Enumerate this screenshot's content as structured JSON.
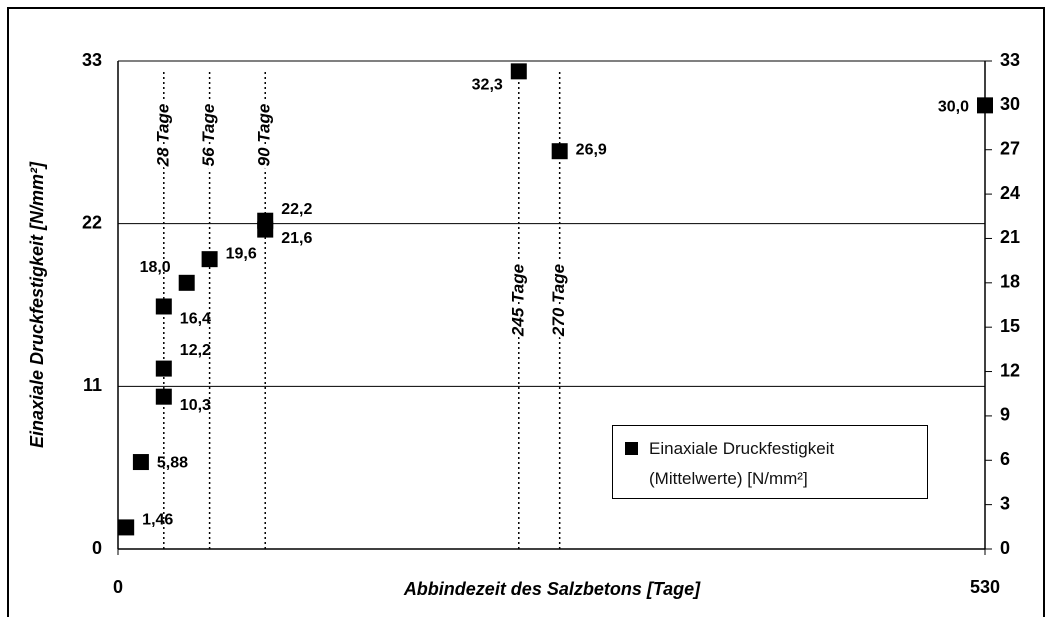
{
  "chart_data": {
    "type": "scatter",
    "xlabel": "Abbindezeit des Salzbetons [Tage]",
    "ylabel": "Einaxiale Druckfestigkeit [N/mm²]",
    "xlim": [
      0,
      530
    ],
    "xticks": [
      0,
      530
    ],
    "ylim": [
      0,
      33
    ],
    "yticks": [
      0,
      11,
      22,
      33
    ],
    "y2lim": [
      0,
      33
    ],
    "y2ticks": [
      0,
      3,
      6,
      9,
      12,
      15,
      18,
      21,
      24,
      27,
      30,
      33
    ],
    "grid": true,
    "series": [
      {
        "name": "Einaxiale Druckfestigkeit (Mittelwerte) [N/mm²]",
        "color": "#000000",
        "x": [
          5,
          14,
          28,
          28,
          28,
          42,
          56,
          90,
          90,
          245,
          270,
          530
        ],
        "values": [
          1.46,
          5.88,
          10.3,
          12.2,
          16.4,
          18.0,
          19.6,
          21.6,
          22.2,
          32.3,
          26.9,
          30.0
        ],
        "value_labels": [
          "1,46",
          "5,88",
          "10,3",
          "12,2",
          "16,4",
          "18,0",
          "19,6",
          "21,6",
          "22,2",
          "32,3",
          "26,9",
          "30,0"
        ]
      }
    ],
    "vlines": [
      {
        "x": 28,
        "label": "28 Tage"
      },
      {
        "x": 56,
        "label": "56 Tage"
      },
      {
        "x": 90,
        "label": "90 Tage"
      },
      {
        "x": 245,
        "label": "245 Tage"
      },
      {
        "x": 270,
        "label": "270 Tage"
      }
    ]
  }
}
